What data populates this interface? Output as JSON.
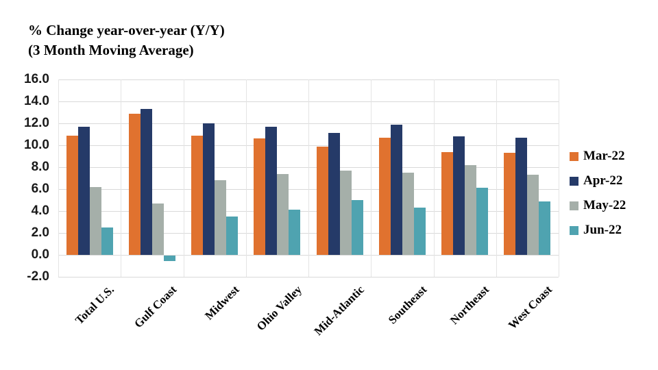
{
  "chart_data": {
    "type": "bar",
    "title": "% Change year-over-year (Y/Y)",
    "subtitle": "(3 Month Moving Average)",
    "categories": [
      "Total U.S.",
      "Gulf Coast",
      "Midwest",
      "Ohio Valley",
      "Mid-Atlantic",
      "Southeast",
      "Northeast",
      "West Coast"
    ],
    "series": [
      {
        "name": "Mar-22",
        "color": "#E0722F",
        "values": [
          10.9,
          12.9,
          10.9,
          10.6,
          9.9,
          10.7,
          9.4,
          9.3
        ]
      },
      {
        "name": "Apr-22",
        "color": "#253A68",
        "values": [
          11.7,
          13.3,
          12.0,
          11.7,
          11.1,
          11.9,
          10.8,
          10.7
        ]
      },
      {
        "name": "May-22",
        "color": "#A5AFA9",
        "values": [
          6.2,
          4.7,
          6.8,
          7.4,
          7.7,
          7.5,
          8.2,
          7.3
        ]
      },
      {
        "name": "Jun-22",
        "color": "#4FA3B0",
        "values": [
          2.5,
          -0.5,
          3.5,
          4.1,
          5.0,
          4.3,
          6.1,
          4.9
        ]
      }
    ],
    "ylim": [
      -2.0,
      16.0
    ],
    "ytick_step": 2.0,
    "ytick_labels": [
      "16.0",
      "14.0",
      "12.0",
      "10.0",
      "8.0",
      "6.0",
      "4.0",
      "2.0",
      "0.0",
      "-2.0"
    ],
    "grid": true,
    "grid_color": "#d9d9d9",
    "legend_position": "right"
  }
}
